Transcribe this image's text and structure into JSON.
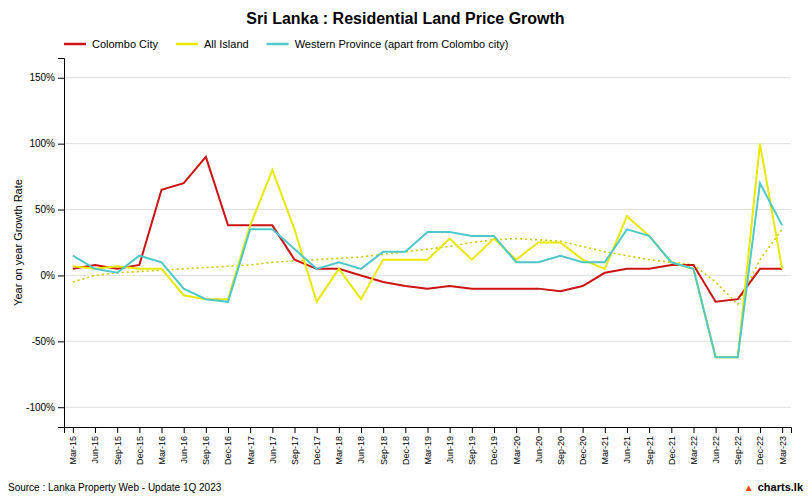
{
  "chart_data": {
    "type": "line",
    "title": "Sri Lanka : Residential Land Price Growth",
    "y_label": "Year on year Growth Rate",
    "annotations": [
      "Source :  Lanka Property Web - Update 1Q 2023",
      "▲",
      "charts.lk"
    ],
    "categories": [
      "Mar-15",
      "Jun-15",
      "Sep-15",
      "Dec-15",
      "Mar-16",
      "Jun-16",
      "Sep-16",
      "Dec-16",
      "Mar-17",
      "Jun-17",
      "Sep-17",
      "Dec-17",
      "Mar-18",
      "Jun-18",
      "Sep-18",
      "Dec-18",
      "Mar-19",
      "Jun-19",
      "Sep-19",
      "Dec-19",
      "Mar-20",
      "Jun-20",
      "Sep-20",
      "Dec-20",
      "Mar-21",
      "Jun-21",
      "Sep-21",
      "Dec-21",
      "Mar-22",
      "Jun-22",
      "Sep-22",
      "Dec-22",
      "Mar-23"
    ],
    "series": [
      {
        "name": "Colombo City",
        "color": "#cc1414",
        "line_style": "solid",
        "values": [
          5,
          8,
          5,
          8,
          65,
          70,
          90,
          38,
          38,
          38,
          12,
          5,
          5,
          0,
          -5,
          -8,
          -10,
          -8,
          -10,
          -10,
          -10,
          -10,
          -12,
          -8,
          2,
          5,
          5,
          8,
          8,
          -20,
          -18,
          5,
          5
        ]
      },
      {
        "name": "All Island",
        "color": "#e8e800",
        "line_style": "solid",
        "values": [
          7,
          5,
          7,
          5,
          5,
          -15,
          -18,
          -18,
          38,
          80,
          35,
          -20,
          5,
          -18,
          12,
          12,
          12,
          28,
          12,
          28,
          12,
          25,
          25,
          12,
          5,
          45,
          30,
          10,
          5,
          -62,
          -62,
          100,
          5
        ]
      },
      {
        "name": "Western Province (apart from Colombo city)",
        "color": "#4ec8c8",
        "line_style": "solid",
        "values": [
          15,
          5,
          2,
          15,
          10,
          -10,
          -18,
          -20,
          35,
          35,
          20,
          5,
          10,
          5,
          18,
          18,
          33,
          33,
          30,
          30,
          10,
          10,
          15,
          10,
          10,
          35,
          30,
          10,
          5,
          -62,
          -62,
          70,
          38
        ]
      },
      {
        "color": "#c8c800",
        "line_style": "dotted",
        "values": [
          -5,
          0,
          2,
          3,
          4,
          5,
          6,
          7,
          8,
          10,
          11,
          12,
          13,
          14,
          16,
          18,
          20,
          22,
          25,
          27,
          28,
          27,
          26,
          22,
          18,
          15,
          12,
          10,
          8,
          -5,
          -22,
          12,
          35
        ]
      }
    ],
    "ylim": [
      -115,
      165
    ],
    "yticks": [
      {
        "value": -100,
        "label": "-100%"
      },
      {
        "value": -50,
        "label": "-50%"
      },
      {
        "value": 0,
        "label": "0%"
      },
      {
        "value": 50,
        "label": "50%"
      },
      {
        "value": 100,
        "label": "100%"
      },
      {
        "value": 150,
        "label": "150%"
      }
    ],
    "grid": true,
    "legend": "upper left"
  }
}
